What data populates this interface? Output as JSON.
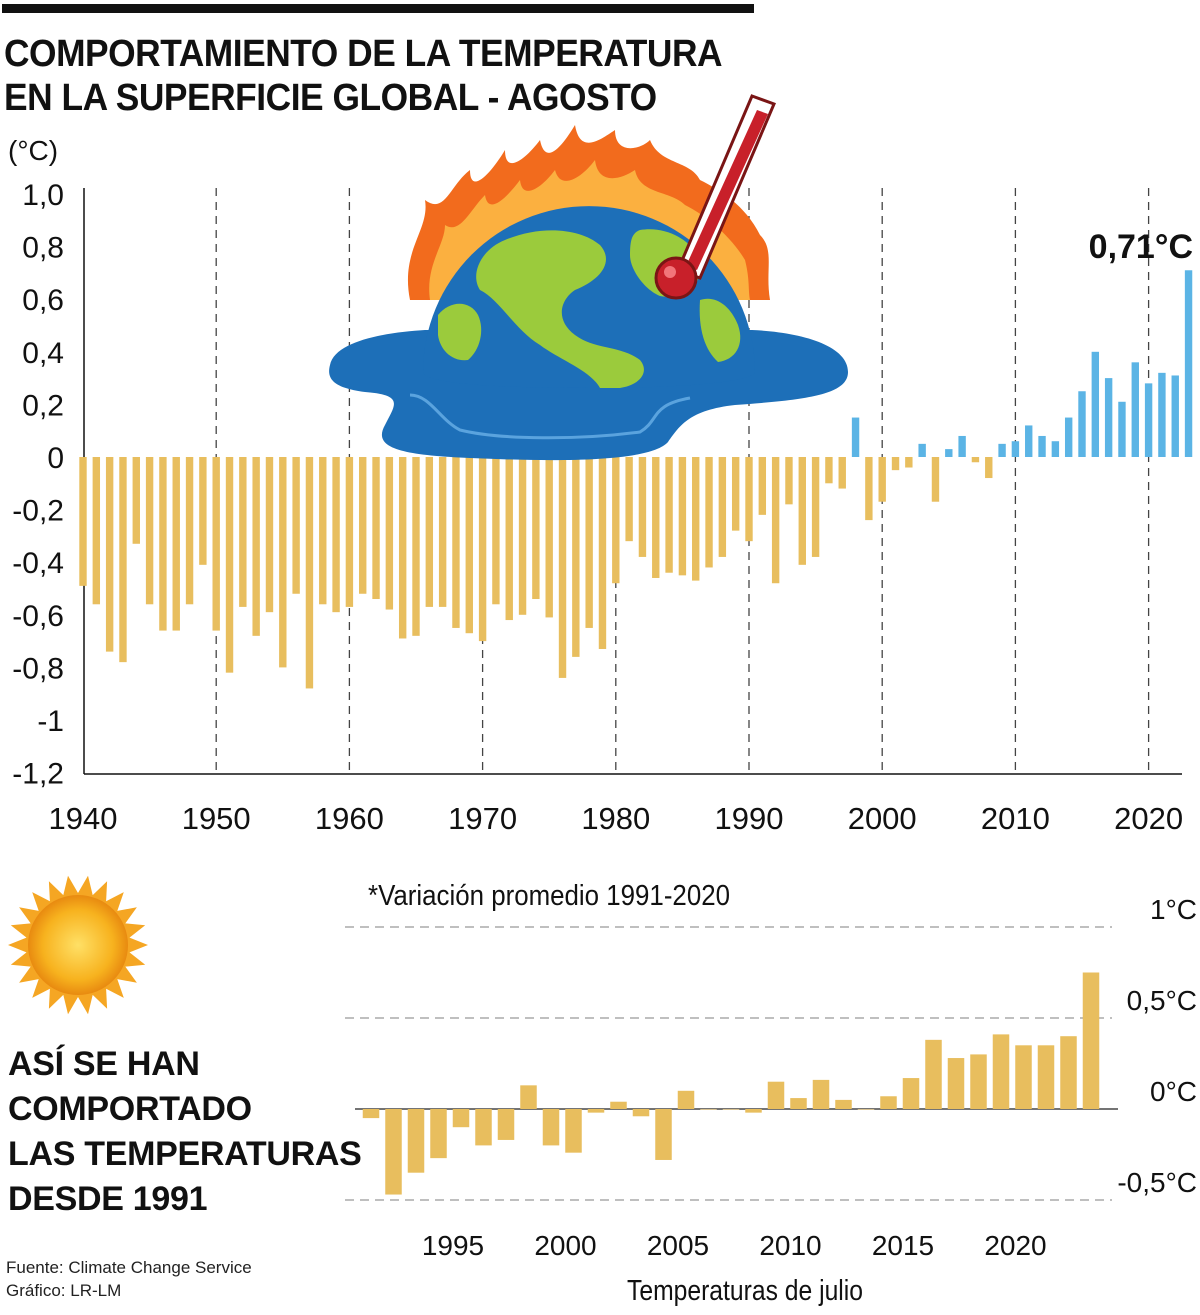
{
  "title": {
    "line1": "COMPORTAMIENTO DE LA TEMPERATURA",
    "line2": "EN LA SUPERFICIE GLOBAL - AGOSTO"
  },
  "colors": {
    "negative": "#E8BE5E",
    "positive": "#5BB4E5",
    "text": "#111111",
    "bottom_bars": "#E8BE5E"
  },
  "illustrations": [
    "melting-earth-icon",
    "thermometer-icon",
    "flames-icon",
    "sun-icon"
  ],
  "chart_data": [
    {
      "type": "bar",
      "ylabel": "(°C)",
      "ylim": [
        -1.2,
        1.0
      ],
      "y_ticks": [
        "1,0",
        "0,8",
        "0,6",
        "0,4",
        "0,2",
        "0",
        "-0,2",
        "-0,4",
        "-0,6",
        "-0,8",
        "-1",
        "-1,2"
      ],
      "y_tick_values": [
        1.0,
        0.8,
        0.6,
        0.4,
        0.2,
        0,
        -0.2,
        -0.4,
        -0.6,
        -0.8,
        -1.0,
        -1.2
      ],
      "x_ticks": [
        "1940",
        "1950",
        "1960",
        "1970",
        "1980",
        "1990",
        "2000",
        "2010",
        "2020"
      ],
      "x_tick_values": [
        1940,
        1950,
        1960,
        1970,
        1980,
        1990,
        2000,
        2010,
        2020
      ],
      "grid": "vertical dashed lines at decades",
      "annotation": "0,71°C",
      "x": [
        1940,
        1941,
        1942,
        1943,
        1944,
        1945,
        1946,
        1947,
        1948,
        1949,
        1950,
        1951,
        1952,
        1953,
        1954,
        1955,
        1956,
        1957,
        1958,
        1959,
        1960,
        1961,
        1962,
        1963,
        1964,
        1965,
        1966,
        1967,
        1968,
        1969,
        1970,
        1971,
        1972,
        1973,
        1974,
        1975,
        1976,
        1977,
        1978,
        1979,
        1980,
        1981,
        1982,
        1983,
        1984,
        1985,
        1986,
        1987,
        1988,
        1989,
        1990,
        1991,
        1992,
        1993,
        1994,
        1995,
        1996,
        1997,
        1998,
        1999,
        2000,
        2001,
        2002,
        2003,
        2004,
        2005,
        2006,
        2007,
        2008,
        2009,
        2010,
        2011,
        2012,
        2013,
        2014,
        2015,
        2016,
        2017,
        2018,
        2019,
        2020,
        2021,
        2022,
        2023
      ],
      "values": [
        -0.49,
        -0.56,
        -0.74,
        -0.78,
        -0.33,
        -0.56,
        -0.66,
        -0.66,
        -0.56,
        -0.41,
        -0.66,
        -0.82,
        -0.57,
        -0.68,
        -0.59,
        -0.8,
        -0.52,
        -0.88,
        -0.56,
        -0.59,
        -0.57,
        -0.52,
        -0.54,
        -0.58,
        -0.69,
        -0.68,
        -0.57,
        -0.57,
        -0.65,
        -0.67,
        -0.7,
        -0.56,
        -0.62,
        -0.6,
        -0.54,
        -0.61,
        -0.84,
        -0.76,
        -0.65,
        -0.73,
        -0.48,
        -0.32,
        -0.38,
        -0.46,
        -0.44,
        -0.45,
        -0.47,
        -0.42,
        -0.38,
        -0.28,
        -0.32,
        -0.22,
        -0.48,
        -0.18,
        -0.41,
        -0.38,
        -0.1,
        -0.12,
        0.15,
        -0.24,
        -0.17,
        -0.05,
        -0.04,
        0.05,
        -0.17,
        0.03,
        0.08,
        -0.02,
        -0.08,
        0.05,
        0.06,
        0.12,
        0.08,
        0.06,
        0.15,
        0.25,
        0.4,
        0.3,
        0.21,
        0.36,
        0.28,
        0.32,
        0.31,
        0.71
      ]
    },
    {
      "type": "bar",
      "note": "*Variación promedio 1991-2020",
      "xlabel": "Temperaturas de julio",
      "ylim": [
        -0.5,
        1.0
      ],
      "y_ticks": [
        "1°C",
        "0,5°C",
        "0°C",
        "-0,5°C"
      ],
      "y_tick_values": [
        1.0,
        0.5,
        0.0,
        -0.5
      ],
      "x_ticks": [
        "1995",
        "2000",
        "2005",
        "2010",
        "2015",
        "2020"
      ],
      "x_tick_values": [
        1995,
        2000,
        2005,
        2010,
        2015,
        2020
      ],
      "grid": "horizontal dashed lines",
      "x": [
        1991,
        1992,
        1993,
        1994,
        1995,
        1996,
        1997,
        1998,
        1999,
        2000,
        2001,
        2002,
        2003,
        2004,
        2005,
        2006,
        2007,
        2008,
        2009,
        2010,
        2011,
        2012,
        2013,
        2014,
        2015,
        2016,
        2017,
        2018,
        2019,
        2020,
        2021,
        2022,
        2023
      ],
      "values": [
        -0.05,
        -0.47,
        -0.35,
        -0.27,
        -0.1,
        -0.2,
        -0.17,
        0.13,
        -0.2,
        -0.24,
        -0.02,
        0.04,
        -0.04,
        -0.28,
        0.1,
        0.0,
        0.0,
        -0.02,
        0.15,
        0.06,
        0.16,
        0.05,
        0.0,
        0.07,
        0.17,
        0.38,
        0.28,
        0.3,
        0.41,
        0.35,
        0.35,
        0.4,
        0.75
      ]
    }
  ],
  "section2": {
    "title_lines": [
      "ASÍ SE HAN",
      "COMPORTADO",
      "LAS TEMPERATURAS",
      "DESDE 1991"
    ]
  },
  "footer": {
    "source": "Fuente: Climate Change Service",
    "credit": "Gráfico: LR-LM"
  }
}
